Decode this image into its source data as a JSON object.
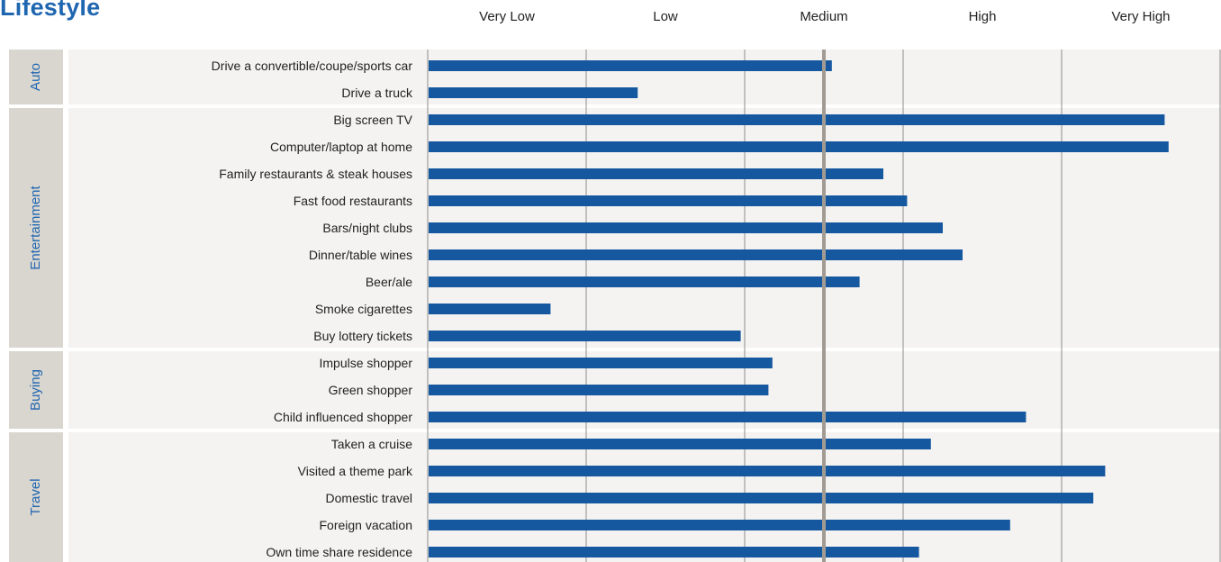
{
  "title": "Lifestyle",
  "chart_data": {
    "type": "bar",
    "orientation": "horizontal",
    "scale_labels": [
      "Very Low",
      "Low",
      "Medium",
      "High",
      "Very High"
    ],
    "xlim": [
      0,
      200
    ],
    "reference_value": 100,
    "grid": true,
    "bar_color": "#1558a0",
    "groups": [
      {
        "name": "Auto",
        "rows": [
          {
            "label": "Drive a convertible/coupe/sports car",
            "value": 102
          },
          {
            "label": "Drive a truck",
            "value": 53
          }
        ]
      },
      {
        "name": "Entertainment",
        "rows": [
          {
            "label": "Big screen TV",
            "value": 186
          },
          {
            "label": "Computer/laptop at home",
            "value": 187
          },
          {
            "label": "Family restaurants & steak houses",
            "value": 115
          },
          {
            "label": "Fast food restaurants",
            "value": 121
          },
          {
            "label": "Bars/night clubs",
            "value": 130
          },
          {
            "label": "Dinner/table wines",
            "value": 135
          },
          {
            "label": "Beer/ale",
            "value": 109
          },
          {
            "label": "Smoke cigarettes",
            "value": 31
          },
          {
            "label": "Buy lottery tickets",
            "value": 79
          }
        ]
      },
      {
        "name": "Buying",
        "rows": [
          {
            "label": "Impulse shopper",
            "value": 87
          },
          {
            "label": "Green shopper",
            "value": 86
          },
          {
            "label": "Child influenced shopper",
            "value": 151
          }
        ]
      },
      {
        "name": "Travel",
        "rows": [
          {
            "label": "Taken a cruise ",
            "value": 127
          },
          {
            "label": "Visited a theme park",
            "value": 171
          },
          {
            "label": "Domestic travel",
            "value": 168
          },
          {
            "label": "Foreign vacation",
            "value": 147
          },
          {
            "label": "Own time share residence",
            "value": 124
          }
        ]
      }
    ]
  }
}
